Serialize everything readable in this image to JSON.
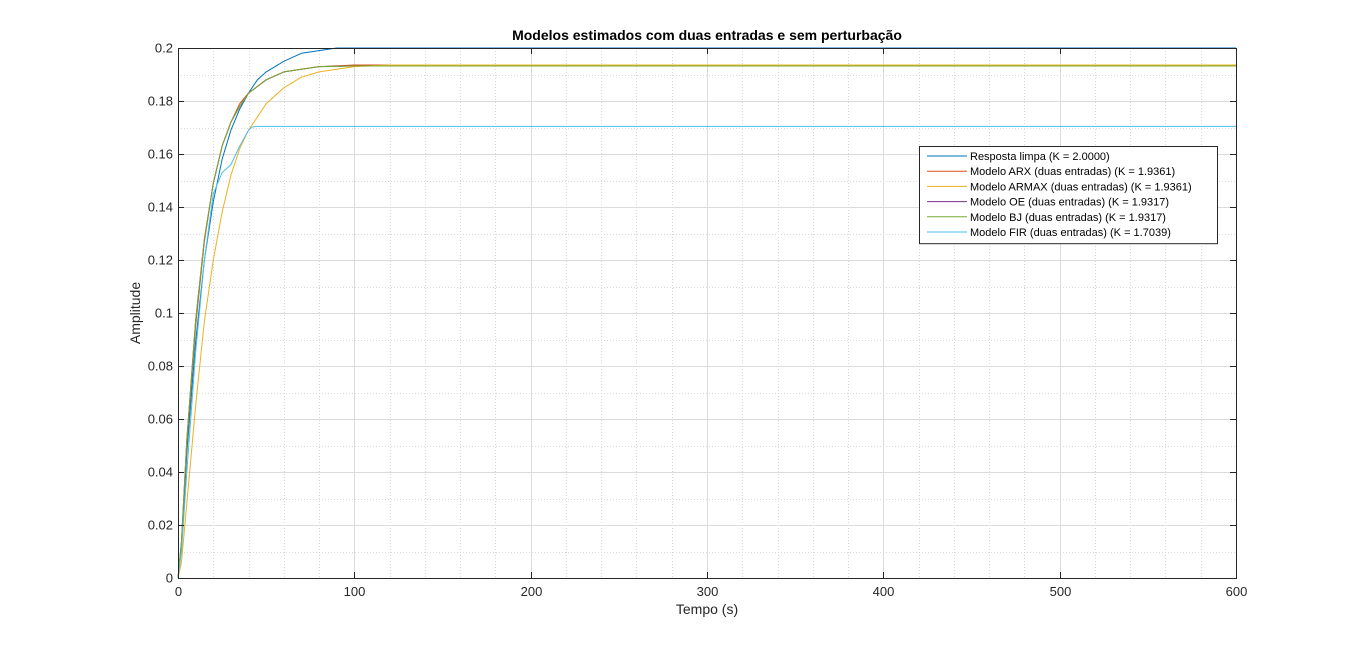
{
  "chart_data": {
    "type": "line",
    "title": "Modelos estimados com duas entradas e sem perturbação",
    "xlabel": "Tempo (s)",
    "ylabel": "Amplitude",
    "xlim": [
      0,
      600
    ],
    "ylim": [
      0,
      0.2
    ],
    "xticks": [
      0,
      100,
      200,
      300,
      400,
      500,
      600
    ],
    "xtick_labels": [
      "0",
      "100",
      "200",
      "300",
      "400",
      "500",
      "600"
    ],
    "yticks": [
      0,
      0.02,
      0.04,
      0.06,
      0.08,
      0.1,
      0.12,
      0.14,
      0.16,
      0.18,
      0.2
    ],
    "ytick_labels": [
      "0",
      "0.02",
      "0.04",
      "0.06",
      "0.08",
      "0.1",
      "0.12",
      "0.14",
      "0.16",
      "0.18",
      "0.2"
    ],
    "grid": "on (major and minor)",
    "legend_position": "top-right",
    "series": [
      {
        "name": "Resposta limpa (K = 2.0000)",
        "color": "#0072BD",
        "x": [
          0,
          2,
          5,
          10,
          15,
          20,
          25,
          30,
          35,
          40,
          45,
          50,
          60,
          70,
          80,
          90,
          100,
          600
        ],
        "y": [
          0,
          0.012,
          0.047,
          0.089,
          0.12,
          0.142,
          0.158,
          0.169,
          0.177,
          0.183,
          0.188,
          0.191,
          0.195,
          0.198,
          0.199,
          0.2,
          0.2,
          0.2
        ]
      },
      {
        "name": "Modelo ARX (duas entradas) (K = 1.9361)",
        "color": "#D95319",
        "x": [
          0,
          2,
          5,
          10,
          15,
          20,
          25,
          30,
          35,
          40,
          50,
          60,
          70,
          80,
          100,
          600
        ],
        "y": [
          0,
          0.013,
          0.05,
          0.095,
          0.127,
          0.149,
          0.163,
          0.172,
          0.179,
          0.183,
          0.188,
          0.191,
          0.192,
          0.193,
          0.1936,
          0.1936
        ]
      },
      {
        "name": "Modelo ARMAX (duas entradas) (K = 1.9361)",
        "color": "#EDB120",
        "x": [
          0,
          2,
          5,
          10,
          15,
          20,
          25,
          30,
          35,
          40,
          50,
          60,
          70,
          80,
          90,
          100,
          110,
          120,
          600
        ],
        "y": [
          0,
          0.006,
          0.028,
          0.065,
          0.097,
          0.12,
          0.138,
          0.152,
          0.162,
          0.169,
          0.179,
          0.185,
          0.189,
          0.191,
          0.192,
          0.193,
          0.1933,
          0.1936,
          0.1936
        ]
      },
      {
        "name": "Modelo OE (duas entradas) (K = 1.9317)",
        "color": "#7E2F8E",
        "x": [
          0,
          2,
          5,
          10,
          15,
          20,
          25,
          30,
          35,
          40,
          50,
          60,
          70,
          80,
          100,
          600
        ],
        "y": [
          0,
          0.014,
          0.052,
          0.097,
          0.128,
          0.149,
          0.163,
          0.172,
          0.178,
          0.183,
          0.188,
          0.191,
          0.192,
          0.193,
          0.1932,
          0.1932
        ]
      },
      {
        "name": "Modelo BJ (duas entradas) (K = 1.9317)",
        "color": "#77AC30",
        "x": [
          0,
          2,
          5,
          10,
          15,
          20,
          25,
          30,
          35,
          40,
          50,
          60,
          70,
          80,
          100,
          600
        ],
        "y": [
          0,
          0.014,
          0.052,
          0.097,
          0.128,
          0.149,
          0.163,
          0.172,
          0.178,
          0.183,
          0.188,
          0.191,
          0.192,
          0.193,
          0.1932,
          0.1932
        ]
      },
      {
        "name": "Modelo FIR (duas entradas) (K = 1.7039)",
        "color": "#4DBEEE",
        "x": [
          0,
          2,
          5,
          10,
          15,
          20,
          25,
          30,
          35,
          40,
          42,
          45,
          600
        ],
        "y": [
          0,
          0.01,
          0.04,
          0.085,
          0.12,
          0.145,
          0.153,
          0.156,
          0.163,
          0.169,
          0.1702,
          0.1704,
          0.1704
        ]
      }
    ]
  }
}
